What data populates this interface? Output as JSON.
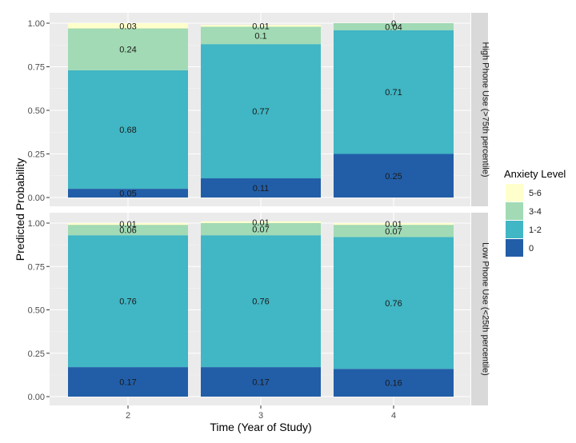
{
  "chart_data": {
    "type": "bar",
    "stacked": true,
    "xlabel": "Time (Year of Study)",
    "ylabel": "Predicted Probability",
    "ylim": [
      0,
      1
    ],
    "yticks": [
      "0.00",
      "0.25",
      "0.50",
      "0.75",
      "1.00"
    ],
    "categories": [
      "2",
      "3",
      "4"
    ],
    "legend": {
      "title": "Anxiety Level",
      "position": "right",
      "entries": [
        {
          "label": "5-6",
          "color": "#ffffcc"
        },
        {
          "label": "3-4",
          "color": "#a1dab4"
        },
        {
          "label": "1-2",
          "color": "#41b6c4"
        },
        {
          "label": "0",
          "color": "#225ea8"
        }
      ]
    },
    "stack_order": [
      "0",
      "1-2",
      "3-4",
      "5-6"
    ],
    "panels": [
      {
        "strip": "High Phone Use (>75th percentile)",
        "series": [
          {
            "name": "0",
            "values": [
              0.05,
              0.11,
              0.25
            ],
            "labels": [
              "0.05",
              "0.11",
              "0.25"
            ]
          },
          {
            "name": "1-2",
            "values": [
              0.68,
              0.77,
              0.71
            ],
            "labels": [
              "0.68",
              "0.77",
              "0.71"
            ]
          },
          {
            "name": "3-4",
            "values": [
              0.24,
              0.1,
              0.04
            ],
            "labels": [
              "0.24",
              "0.1",
              "0.04"
            ]
          },
          {
            "name": "5-6",
            "values": [
              0.03,
              0.01,
              0.0
            ],
            "labels": [
              "0.03",
              "0.01",
              "0"
            ]
          }
        ]
      },
      {
        "strip": "Low Phone Use (<25th percentile)",
        "series": [
          {
            "name": "0",
            "values": [
              0.17,
              0.17,
              0.16
            ],
            "labels": [
              "0.17",
              "0.17",
              "0.16"
            ]
          },
          {
            "name": "1-2",
            "values": [
              0.76,
              0.76,
              0.76
            ],
            "labels": [
              "0.76",
              "0.76",
              "0.76"
            ]
          },
          {
            "name": "3-4",
            "values": [
              0.06,
              0.07,
              0.07
            ],
            "labels": [
              "0.06",
              "0.07",
              "0.07"
            ]
          },
          {
            "name": "5-6",
            "values": [
              0.01,
              0.01,
              0.01
            ],
            "labels": [
              "0.01",
              "0.01",
              "0.01"
            ]
          }
        ]
      }
    ],
    "grid": true,
    "panel_background": "#ebebeb",
    "strip_background": "#d9d9d9"
  }
}
